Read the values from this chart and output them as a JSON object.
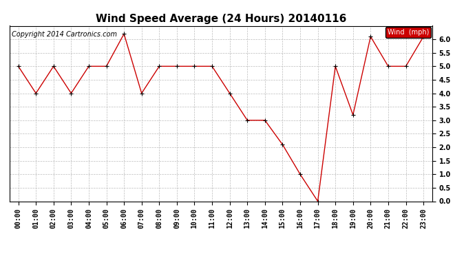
{
  "title": "Wind Speed Average (24 Hours) 20140116",
  "copyright": "Copyright 2014 Cartronics.com",
  "legend_label": "Wind  (mph)",
  "background_color": "#ffffff",
  "plot_bg_color": "#ffffff",
  "grid_color": "#bbbbbb",
  "line_color": "#cc0000",
  "marker_color": "#000000",
  "hours": [
    "00:00",
    "01:00",
    "02:00",
    "03:00",
    "04:00",
    "05:00",
    "06:00",
    "07:00",
    "08:00",
    "09:00",
    "10:00",
    "11:00",
    "12:00",
    "13:00",
    "14:00",
    "15:00",
    "16:00",
    "17:00",
    "18:00",
    "19:00",
    "20:00",
    "21:00",
    "22:00",
    "23:00"
  ],
  "values": [
    5.0,
    4.0,
    5.0,
    4.0,
    5.0,
    5.0,
    6.2,
    4.0,
    5.0,
    5.0,
    5.0,
    5.0,
    4.0,
    3.0,
    3.0,
    2.1,
    1.0,
    0.0,
    5.0,
    3.2,
    6.1,
    5.0,
    5.0,
    6.1
  ],
  "ylim": [
    0.0,
    6.5
  ],
  "yticks": [
    0.0,
    0.5,
    1.0,
    1.5,
    2.0,
    2.5,
    3.0,
    3.5,
    4.0,
    4.5,
    5.0,
    5.5,
    6.0
  ],
  "title_fontsize": 11,
  "copyright_fontsize": 7,
  "tick_fontsize": 7,
  "legend_fontsize": 7
}
